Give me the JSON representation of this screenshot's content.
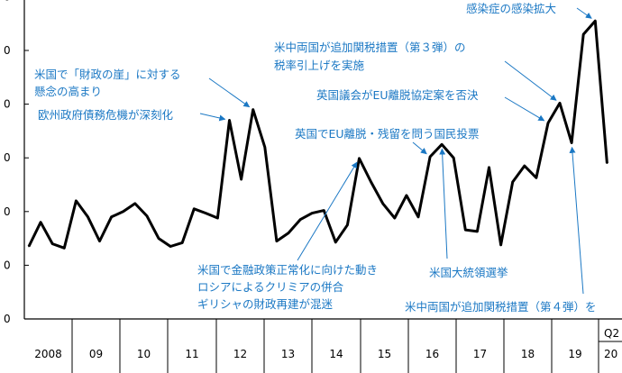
{
  "chart_data": {
    "type": "line",
    "title": "",
    "xlabel": "",
    "ylabel": "",
    "grid": false,
    "legend": "none",
    "line_color": "#000000",
    "annotation_color": "#1b78c4",
    "ylim": [
      0,
      6
    ],
    "y_tick_labels": [
      "0",
      "0",
      "0",
      "0",
      "0",
      "0",
      "0"
    ],
    "x_category_labels": [
      "2008",
      "09",
      "10",
      "11",
      "12",
      "13",
      "14",
      "15",
      "16",
      "17",
      "18",
      "19",
      "Q2",
      "20"
    ],
    "series": [
      {
        "values": [
          1.35,
          1.8,
          1.4,
          1.32,
          2.2,
          1.9,
          1.45,
          1.9,
          2.0,
          2.15,
          1.92,
          1.5,
          1.35,
          1.42,
          2.05,
          1.97,
          1.88,
          3.7,
          2.6,
          3.9,
          3.2,
          1.45,
          1.6,
          1.85,
          1.97,
          2.02,
          1.43,
          1.75,
          2.99,
          2.55,
          2.15,
          1.88,
          2.3,
          1.9,
          3.02,
          3.25,
          3.0,
          1.66,
          1.63,
          2.82,
          1.38,
          2.55,
          2.85,
          2.63,
          3.65,
          4.02,
          3.28,
          5.3,
          5.55,
          2.9
        ]
      }
    ],
    "annotations": [
      {
        "id": "a1",
        "text": "感染症の感染拡大",
        "target_index": 48
      },
      {
        "id": "a2",
        "lines": [
          "米中両国が追加関税措置（第３弾）の",
          "税率引上げを実施"
        ],
        "target_index": 45
      },
      {
        "id": "a3",
        "text": "英国議会がEU離脱協定案を否決",
        "target_index": 44
      },
      {
        "id": "a4",
        "text": "英国でEU離脱・残留を問う国民投票",
        "target_index": 34
      },
      {
        "id": "a5",
        "lines": [
          "米国で「財政の崖」に対する",
          "懸念の高まり"
        ],
        "target_index": 19
      },
      {
        "id": "a6",
        "text": "欧州政府債務危機が深刻化",
        "target_index": 17
      },
      {
        "id": "a7",
        "lines": [
          "米国で金融政策正常化に向けた動き",
          "ロシアによるクリミアの併合",
          "ギリシャの財政再建が混迷"
        ],
        "target_index": 28
      },
      {
        "id": "a8",
        "text": "米国大統領選挙",
        "target_index": 35
      },
      {
        "id": "a9",
        "text": "米中両国が追加関税措置（第４弾）を",
        "target_index": 46
      }
    ]
  }
}
